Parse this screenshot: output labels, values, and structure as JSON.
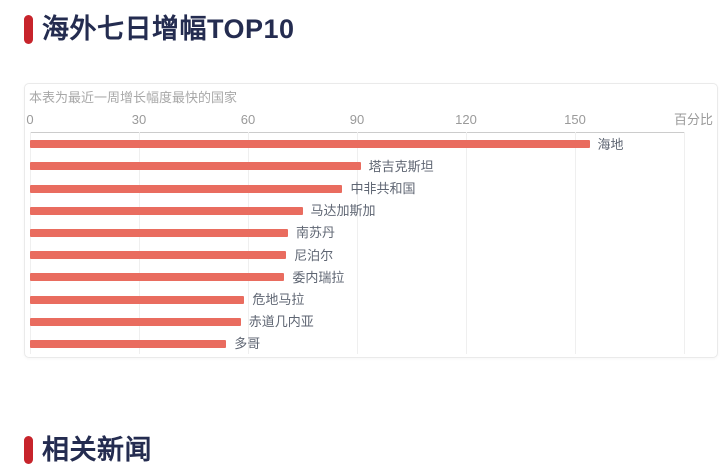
{
  "header": {
    "title": "海外七日增幅TOP10"
  },
  "related_section": {
    "title": "相关新闻"
  },
  "chart": {
    "subtitle": "本表为最近一周增长幅度最快的国家",
    "axis_unit_label": "百分比"
  },
  "chart_data": {
    "type": "bar",
    "orientation": "horizontal",
    "title": "海外七日增幅TOP10",
    "subtitle": "本表为最近一周增长幅度最快的国家",
    "categories": [
      "海地",
      "塔吉克斯坦",
      "中非共和国",
      "马达加斯加",
      "南苏丹",
      "尼泊尔",
      "委内瑞拉",
      "危地马拉",
      "赤道几内亚",
      "多哥"
    ],
    "values": [
      154,
      91,
      86,
      75,
      71,
      70.5,
      70,
      59,
      58,
      54
    ],
    "xlabel": "百分比",
    "xlim": [
      0,
      180
    ],
    "xticks": [
      0,
      30,
      60,
      90,
      120,
      150
    ],
    "grid": true,
    "legend": false
  },
  "colors": {
    "accent": "#c7242b",
    "title_text": "#242c50",
    "bar": "#e96c5f",
    "axis_text": "#9a9a9a",
    "grid_line": "#efefef",
    "axis_line": "#cccccc",
    "card_border": "#eaeaea",
    "subtitle_text": "#a8a8a8",
    "bar_label_text": "#5f6673"
  }
}
